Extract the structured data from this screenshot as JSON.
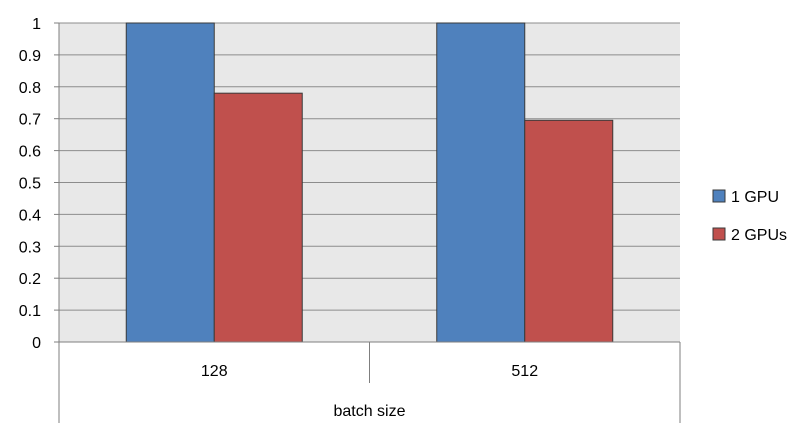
{
  "chart_data": {
    "type": "bar",
    "xlabel": "batch size",
    "categories": [
      "128",
      "512"
    ],
    "series": [
      {
        "name": "1 GPU",
        "color": "#4f81bd",
        "values": [
          1.0,
          1.0
        ]
      },
      {
        "name": "2 GPUs",
        "color": "#c0504d",
        "values": [
          0.78,
          0.695
        ]
      }
    ],
    "ylim": [
      0,
      1
    ],
    "yticks": [
      "0",
      "0.1",
      "0.2",
      "0.3",
      "0.4",
      "0.5",
      "0.6",
      "0.7",
      "0.8",
      "0.9",
      "1"
    ],
    "grid": true,
    "legend_position": "right",
    "colors": {
      "plot_background": "#e8e8e8",
      "gridline": "#8c8c8c",
      "axis": "#7f7f7f"
    }
  }
}
